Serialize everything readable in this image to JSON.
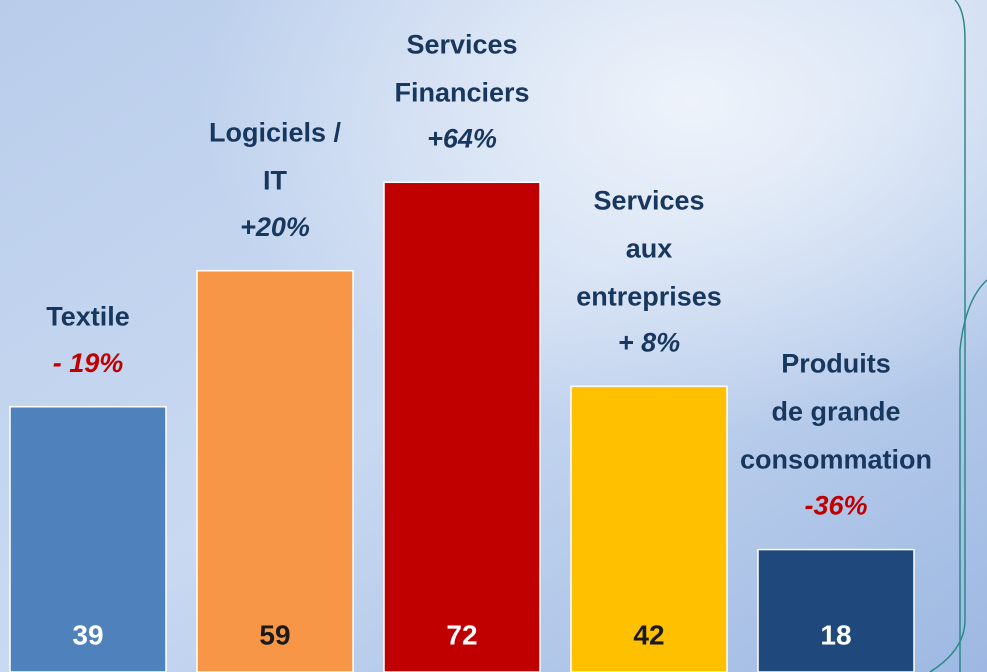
{
  "chart_data": {
    "type": "bar",
    "categories": [
      "Textile",
      "Logiciels /\nIT",
      "Services\nFinanciers",
      "Services\naux\nentreprises",
      "Produits\nde grande\nconsommation"
    ],
    "values": [
      39,
      59,
      72,
      42,
      18
    ],
    "colors": [
      "#4f81bd",
      "#f79646",
      "#c00000",
      "#ffc000",
      "#1f497d"
    ],
    "value_label_colors": [
      "#ffffff",
      "#1a1a1a",
      "#ffffff",
      "#1a1a1a",
      "#ffffff"
    ],
    "annotations": [
      "- 19%",
      "+20%",
      "+64%",
      "+ 8%",
      "-36%"
    ],
    "annotation_colors": [
      "#c00000",
      "#17375e",
      "#17375e",
      "#17375e",
      "#c00000"
    ],
    "ylim": [
      0,
      98.8
    ]
  }
}
